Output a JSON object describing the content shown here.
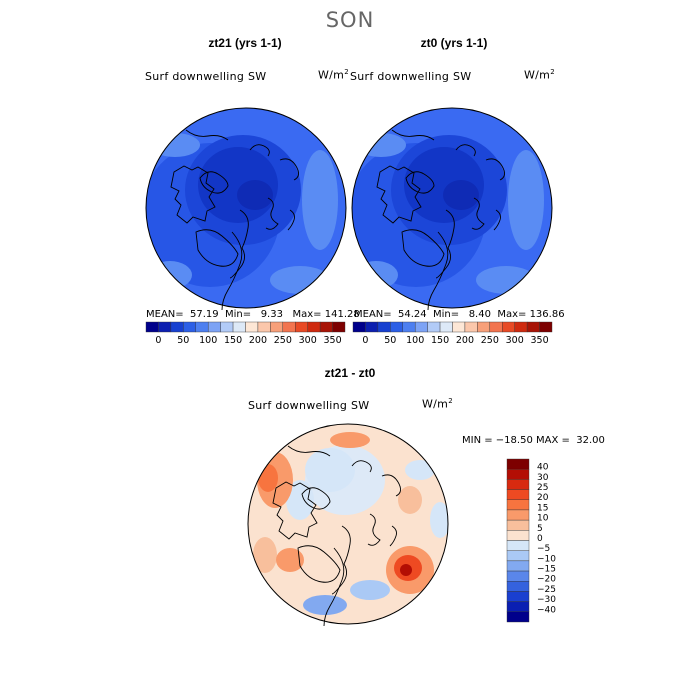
{
  "figure": {
    "title": "SON",
    "variable": "Surf downwelling SW",
    "units": "W/m²",
    "units_base": "W/m",
    "units_exp": "2"
  },
  "panels": [
    {
      "title": "zt21 (yrs 1-1)",
      "mean_label": "MEAN=",
      "mean": "57.19",
      "min_label": "Min=",
      "min": "9.33",
      "max_label": "Max=",
      "max": "141.28"
    },
    {
      "title": "zt0 (yrs 1-1)",
      "mean_label": "MEAN=",
      "mean": "54.24",
      "min_label": "Min=",
      "min": "8.40",
      "max_label": "Max=",
      "max": "136.86"
    }
  ],
  "diff": {
    "title": "zt21 - zt0",
    "stats": "MIN = −18.50 MAX =  32.00"
  },
  "abs_colorbar": {
    "colors": [
      "#00008b",
      "#0c1fb0",
      "#1740d0",
      "#2c5fe6",
      "#4d7ff0",
      "#7da3f5",
      "#b2cbf7",
      "#dde9f7",
      "#fde7d6",
      "#fbc7ab",
      "#f7a07a",
      "#f2744f",
      "#e84a25",
      "#cf2a0f",
      "#a81406",
      "#7d0000"
    ],
    "tick_labels": [
      "0",
      "50",
      "100",
      "150",
      "200",
      "250",
      "300",
      "350"
    ]
  },
  "diff_colorbar": {
    "colors": [
      "#7d0000",
      "#b30e04",
      "#d82a10",
      "#ee4a22",
      "#f7743f",
      "#f99a6a",
      "#f8bf9c",
      "#fbe2cf",
      "#d5e6f8",
      "#aac9f5",
      "#82a9f0",
      "#5a86ea",
      "#3562de",
      "#1a3fd0",
      "#0a1fb2",
      "#00008b"
    ],
    "tick_labels": [
      "40",
      "30",
      "25",
      "20",
      "15",
      "10",
      "5",
      "0",
      "−5",
      "−10",
      "−15",
      "−20",
      "−25",
      "−30",
      "−40"
    ]
  }
}
